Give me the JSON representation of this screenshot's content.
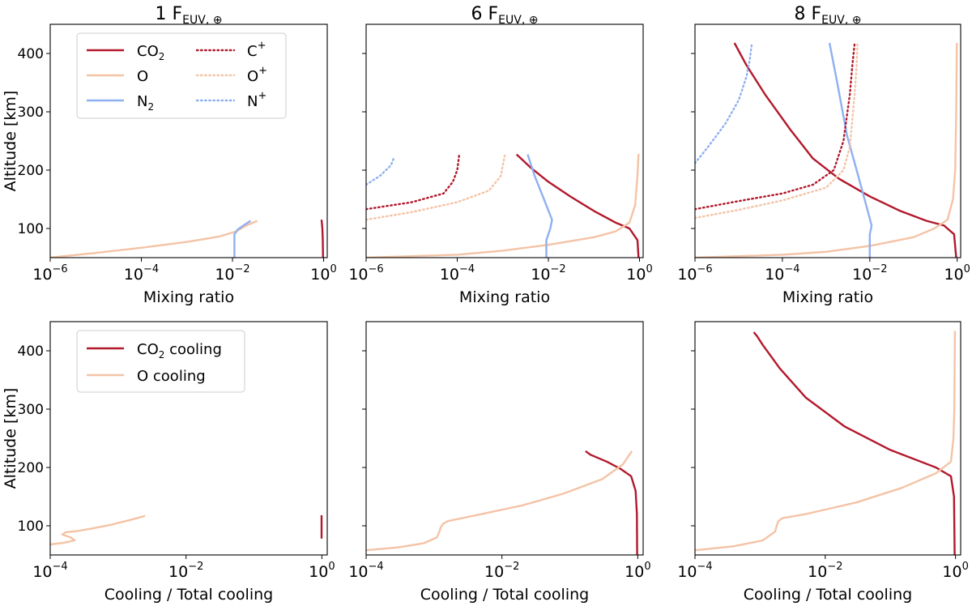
{
  "figure": {
    "column_titles": [
      {
        "main": "1 F",
        "sub": "EUV, ⊕"
      },
      {
        "main": "6 F",
        "sub": "EUV, ⊕"
      },
      {
        "main": "8 F",
        "sub": "EUV, ⊕"
      }
    ]
  },
  "legends": {
    "top": [
      {
        "name": "CO",
        "sub": "2",
        "sup": "",
        "color": "#b2182b",
        "style": "solid"
      },
      {
        "name": "O",
        "sub": "",
        "sup": "",
        "color": "#f4c3a6",
        "style": "solid"
      },
      {
        "name": "N",
        "sub": "2",
        "sup": "",
        "color": "#8fb0f0",
        "style": "solid"
      },
      {
        "name": "C",
        "sub": "",
        "sup": "+",
        "color": "#b2182b",
        "style": "dotted"
      },
      {
        "name": "O",
        "sub": "",
        "sup": "+",
        "color": "#f4c3a6",
        "style": "dotted"
      },
      {
        "name": "N",
        "sub": "",
        "sup": "+",
        "color": "#8fb0f0",
        "style": "dotted"
      }
    ],
    "bottom": [
      {
        "name": "CO",
        "sub": "2",
        "after": " cooling",
        "color": "#b2182b",
        "style": "solid"
      },
      {
        "name": "O",
        "sub": "",
        "after": " cooling",
        "color": "#f4c3a6",
        "style": "solid"
      }
    ]
  },
  "chart_data": [
    {
      "type": "line",
      "row": 0,
      "col": 0,
      "xscale": "log",
      "xlim": [
        1e-06,
        1.2
      ],
      "ylim": [
        50,
        450
      ],
      "xlabel": "Mixing ratio",
      "ylabel": "Altitude [km]",
      "xticks": [
        {
          "v": 1e-06,
          "b": "10",
          "e": "−6"
        },
        {
          "v": 0.0001,
          "b": "10",
          "e": "−4"
        },
        {
          "v": 0.01,
          "b": "10",
          "e": "−2"
        },
        {
          "v": 1,
          "b": "10",
          "e": "0"
        }
      ],
      "yticks": [
        100,
        200,
        300,
        400
      ],
      "series": [
        {
          "color": "#b2182b",
          "style": "solid",
          "points": [
            [
              0.97,
              50
            ],
            [
              0.96,
              80
            ],
            [
              0.94,
              100
            ],
            [
              0.9,
              115
            ]
          ]
        },
        {
          "color": "#f4c3a6",
          "style": "solid",
          "points": [
            [
              1e-06,
              50
            ],
            [
              1e-05,
              58
            ],
            [
              0.0001,
              67
            ],
            [
              0.001,
              77
            ],
            [
              0.005,
              86
            ],
            [
              0.012,
              95
            ],
            [
              0.02,
              105
            ],
            [
              0.035,
              113
            ]
          ]
        },
        {
          "color": "#8fb0f0",
          "style": "solid",
          "points": [
            [
              0.011,
              50
            ],
            [
              0.011,
              90
            ],
            [
              0.013,
              98
            ],
            [
              0.018,
              106
            ],
            [
              0.025,
              113
            ]
          ]
        }
      ]
    },
    {
      "type": "line",
      "row": 0,
      "col": 1,
      "xscale": "log",
      "xlim": [
        1e-06,
        1.2
      ],
      "ylim": [
        50,
        450
      ],
      "xlabel": "Mixing ratio",
      "ylabel": "",
      "xticks": [
        {
          "v": 1e-06,
          "b": "10",
          "e": "−6"
        },
        {
          "v": 0.0001,
          "b": "10",
          "e": "−4"
        },
        {
          "v": 0.01,
          "b": "10",
          "e": "−2"
        },
        {
          "v": 1,
          "b": "10",
          "e": "0"
        }
      ],
      "yticks": [
        100,
        200,
        300,
        400
      ],
      "series": [
        {
          "color": "#b2182b",
          "style": "solid",
          "points": [
            [
              0.95,
              50
            ],
            [
              0.9,
              80
            ],
            [
              0.6,
              100
            ],
            [
              0.3,
              110
            ],
            [
              0.1,
              130
            ],
            [
              0.03,
              155
            ],
            [
              0.01,
              180
            ],
            [
              0.004,
              205
            ],
            [
              0.0025,
              220
            ],
            [
              0.002,
              227
            ]
          ]
        },
        {
          "color": "#f4c3a6",
          "style": "solid",
          "points": [
            [
              1e-06,
              50
            ],
            [
              0.0001,
              55
            ],
            [
              0.001,
              62
            ],
            [
              0.01,
              72
            ],
            [
              0.1,
              85
            ],
            [
              0.3,
              95
            ],
            [
              0.6,
              110
            ],
            [
              0.8,
              140
            ],
            [
              0.9,
              190
            ],
            [
              0.95,
              228
            ]
          ]
        },
        {
          "color": "#8fb0f0",
          "style": "solid",
          "points": [
            [
              0.009,
              50
            ],
            [
              0.009,
              80
            ],
            [
              0.011,
              100
            ],
            [
              0.012,
              115
            ],
            [
              0.008,
              150
            ],
            [
              0.005,
              190
            ],
            [
              0.0035,
              227
            ]
          ]
        },
        {
          "color": "#b2182b",
          "style": "dotted",
          "points": [
            [
              1e-06,
              133
            ],
            [
              1e-05,
              145
            ],
            [
              5e-05,
              160
            ],
            [
              8e-05,
              180
            ],
            [
              0.0001,
              200
            ],
            [
              0.00011,
              225
            ]
          ]
        },
        {
          "color": "#f4c3a6",
          "style": "dotted",
          "points": [
            [
              1e-06,
              115
            ],
            [
              1e-05,
              128
            ],
            [
              0.0001,
              145
            ],
            [
              0.0005,
              165
            ],
            [
              0.0009,
              190
            ],
            [
              0.0011,
              225
            ]
          ]
        },
        {
          "color": "#8fb0f0",
          "style": "dotted",
          "points": [
            [
              1e-06,
              175
            ],
            [
              2e-06,
              190
            ],
            [
              3.5e-06,
              208
            ],
            [
              4e-06,
              220
            ]
          ]
        }
      ]
    },
    {
      "type": "line",
      "row": 0,
      "col": 2,
      "xscale": "log",
      "xlim": [
        1e-06,
        1.2
      ],
      "ylim": [
        50,
        450
      ],
      "xlabel": "Mixing ratio",
      "ylabel": "",
      "xticks": [
        {
          "v": 1e-06,
          "b": "10",
          "e": "−6"
        },
        {
          "v": 0.0001,
          "b": "10",
          "e": "−4"
        },
        {
          "v": 0.01,
          "b": "10",
          "e": "−2"
        },
        {
          "v": 1,
          "b": "10",
          "e": "0"
        }
      ],
      "yticks": [
        100,
        200,
        300,
        400
      ],
      "series": [
        {
          "color": "#b2182b",
          "style": "solid",
          "points": [
            [
              0.95,
              50
            ],
            [
              0.85,
              90
            ],
            [
              0.5,
              105
            ],
            [
              0.2,
              113
            ],
            [
              0.05,
              130
            ],
            [
              0.01,
              155
            ],
            [
              0.002,
              185
            ],
            [
              0.0005,
              220
            ],
            [
              0.00015,
              270
            ],
            [
              4e-05,
              330
            ],
            [
              1.5e-05,
              380
            ],
            [
              8e-06,
              418
            ]
          ]
        },
        {
          "color": "#f4c3a6",
          "style": "solid",
          "points": [
            [
              1e-06,
              50
            ],
            [
              0.0001,
              55
            ],
            [
              0.001,
              60
            ],
            [
              0.01,
              70
            ],
            [
              0.1,
              85
            ],
            [
              0.3,
              100
            ],
            [
              0.6,
              115
            ],
            [
              0.8,
              150
            ],
            [
              0.9,
              200
            ],
            [
              0.95,
              300
            ],
            [
              0.98,
              418
            ]
          ]
        },
        {
          "color": "#8fb0f0",
          "style": "solid",
          "points": [
            [
              0.01,
              50
            ],
            [
              0.01,
              90
            ],
            [
              0.011,
              105
            ],
            [
              0.009,
              130
            ],
            [
              0.005,
              200
            ],
            [
              0.003,
              260
            ],
            [
              0.0018,
              350
            ],
            [
              0.0012,
              418
            ]
          ]
        },
        {
          "color": "#b2182b",
          "style": "dotted",
          "points": [
            [
              1e-06,
              133
            ],
            [
              1e-05,
              147
            ],
            [
              0.0001,
              160
            ],
            [
              0.0005,
              175
            ],
            [
              0.0015,
              200
            ],
            [
              0.0025,
              250
            ],
            [
              0.0035,
              330
            ],
            [
              0.004,
              380
            ],
            [
              0.0045,
              417
            ]
          ]
        },
        {
          "color": "#f4c3a6",
          "style": "dotted",
          "points": [
            [
              1e-06,
              118
            ],
            [
              1e-05,
              132
            ],
            [
              0.0001,
              148
            ],
            [
              0.001,
              170
            ],
            [
              0.0025,
              200
            ],
            [
              0.0035,
              240
            ],
            [
              0.0045,
              330
            ],
            [
              0.005,
              380
            ],
            [
              0.0052,
              417
            ]
          ]
        },
        {
          "color": "#8fb0f0",
          "style": "dotted",
          "points": [
            [
              1e-06,
              212
            ],
            [
              2e-06,
              240
            ],
            [
              5e-06,
              280
            ],
            [
              1e-05,
              320
            ],
            [
              1.5e-05,
              360
            ],
            [
              1.8e-05,
              390
            ],
            [
              2e-05,
              417
            ]
          ]
        }
      ]
    },
    {
      "type": "line",
      "row": 1,
      "col": 0,
      "xscale": "log",
      "xlim": [
        0.0001,
        1.2
      ],
      "ylim": [
        50,
        450
      ],
      "xlabel": "Cooling / Total cooling",
      "ylabel": "Altitude [km]",
      "xticks": [
        {
          "v": 0.0001,
          "b": "10",
          "e": "−4"
        },
        {
          "v": 0.01,
          "b": "10",
          "e": "−2"
        },
        {
          "v": 1,
          "b": "10",
          "e": "0"
        }
      ],
      "yticks": [
        100,
        200,
        300,
        400
      ],
      "series": [
        {
          "color": "#b2182b",
          "style": "solid",
          "points": [
            [
              0.99,
              78
            ],
            [
              0.99,
              118
            ]
          ]
        },
        {
          "color": "#f4c3a6",
          "style": "solid",
          "points": [
            [
              0.0001,
              68
            ],
            [
              0.00016,
              71
            ],
            [
              0.00023,
              75
            ],
            [
              0.0002,
              80
            ],
            [
              0.00015,
              85
            ],
            [
              0.00017,
              89
            ],
            [
              0.00025,
              91
            ],
            [
              0.0004,
              95
            ],
            [
              0.0008,
              102
            ],
            [
              0.0015,
              110
            ],
            [
              0.0025,
              117
            ]
          ]
        }
      ]
    },
    {
      "type": "line",
      "row": 1,
      "col": 1,
      "xscale": "log",
      "xlim": [
        0.0001,
        1.2
      ],
      "ylim": [
        50,
        450
      ],
      "xlabel": "Cooling / Total cooling",
      "ylabel": "",
      "xticks": [
        {
          "v": 0.0001,
          "b": "10",
          "e": "−4"
        },
        {
          "v": 0.01,
          "b": "10",
          "e": "−2"
        },
        {
          "v": 1,
          "b": "10",
          "e": "0"
        }
      ],
      "yticks": [
        100,
        200,
        300,
        400
      ],
      "series": [
        {
          "color": "#b2182b",
          "style": "solid",
          "points": [
            [
              0.98,
              50
            ],
            [
              0.97,
              120
            ],
            [
              0.93,
              160
            ],
            [
              0.8,
              185
            ],
            [
              0.55,
              198
            ],
            [
              0.35,
              210
            ],
            [
              0.2,
              222
            ],
            [
              0.17,
              228
            ]
          ]
        },
        {
          "color": "#f4c3a6",
          "style": "solid",
          "points": [
            [
              0.0001,
              58
            ],
            [
              0.0003,
              63
            ],
            [
              0.0007,
              70
            ],
            [
              0.0011,
              80
            ],
            [
              0.0012,
              90
            ],
            [
              0.00125,
              97
            ],
            [
              0.00135,
              103
            ],
            [
              0.0016,
              108
            ],
            [
              0.005,
              120
            ],
            [
              0.02,
              135
            ],
            [
              0.08,
              155
            ],
            [
              0.3,
              180
            ],
            [
              0.6,
              205
            ],
            [
              0.82,
              228
            ]
          ]
        }
      ]
    },
    {
      "type": "line",
      "row": 1,
      "col": 2,
      "xscale": "log",
      "xlim": [
        0.0001,
        1.2
      ],
      "ylim": [
        50,
        450
      ],
      "xlabel": "Cooling / Total cooling",
      "ylabel": "",
      "xticks": [
        {
          "v": 0.0001,
          "b": "10",
          "e": "−4"
        },
        {
          "v": 0.01,
          "b": "10",
          "e": "−2"
        },
        {
          "v": 1,
          "b": "10",
          "e": "0"
        }
      ],
      "yticks": [
        100,
        200,
        300,
        400
      ],
      "series": [
        {
          "color": "#b2182b",
          "style": "solid",
          "points": [
            [
              0.97,
              50
            ],
            [
              0.95,
              150
            ],
            [
              0.85,
              185
            ],
            [
              0.5,
              200
            ],
            [
              0.1,
              230
            ],
            [
              0.02,
              270
            ],
            [
              0.005,
              320
            ],
            [
              0.002,
              370
            ],
            [
              0.0011,
              410
            ],
            [
              0.0009,
              425
            ],
            [
              0.0008,
              432
            ]
          ]
        },
        {
          "color": "#f4c3a6",
          "style": "solid",
          "points": [
            [
              0.0001,
              58
            ],
            [
              0.0004,
              65
            ],
            [
              0.0011,
              75
            ],
            [
              0.0017,
              90
            ],
            [
              0.0018,
              100
            ],
            [
              0.0019,
              108
            ],
            [
              0.0022,
              113
            ],
            [
              0.005,
              120
            ],
            [
              0.03,
              140
            ],
            [
              0.15,
              165
            ],
            [
              0.5,
              190
            ],
            [
              0.85,
              210
            ],
            [
              0.93,
              250
            ],
            [
              0.96,
              300
            ],
            [
              0.98,
              434
            ]
          ]
        }
      ]
    }
  ]
}
